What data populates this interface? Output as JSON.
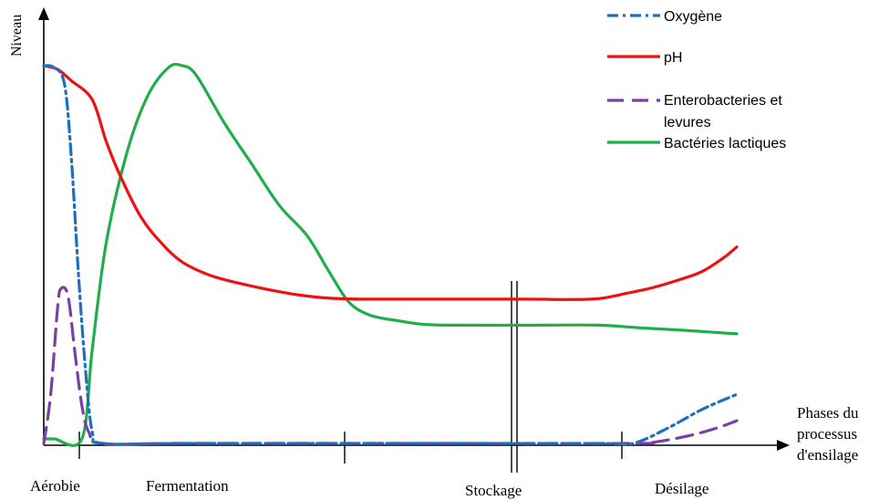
{
  "chart_data": {
    "type": "line",
    "ylabel": "Niveau",
    "xlabel_lines": [
      "Phases du",
      "processus",
      "d'ensilage"
    ],
    "phases": [
      "Aérobie",
      "Fermentation",
      "Stockage",
      "Désilage"
    ],
    "legend_position": "top-right",
    "series": [
      {
        "name": "Oxygène",
        "color": "#1f6fbf",
        "dash": "dashdot",
        "points": [
          [
            0,
            1.0
          ],
          [
            0.015,
            0.995
          ],
          [
            0.03,
            0.95
          ],
          [
            0.04,
            0.75
          ],
          [
            0.05,
            0.45
          ],
          [
            0.06,
            0.2
          ],
          [
            0.07,
            0.03
          ],
          [
            0.085,
            0.0
          ],
          [
            0.2,
            0.0
          ],
          [
            0.5,
            0.0
          ],
          [
            0.8,
            0.0
          ],
          [
            0.85,
            0.0
          ],
          [
            0.9,
            0.04
          ],
          [
            0.95,
            0.09
          ],
          [
            1.0,
            0.13
          ]
        ]
      },
      {
        "name": "pH",
        "color": "#ee1111",
        "dash": "solid",
        "points": [
          [
            0,
            1.0
          ],
          [
            0.02,
            0.99
          ],
          [
            0.04,
            0.96
          ],
          [
            0.07,
            0.91
          ],
          [
            0.09,
            0.8
          ],
          [
            0.11,
            0.71
          ],
          [
            0.14,
            0.6
          ],
          [
            0.17,
            0.53
          ],
          [
            0.2,
            0.48
          ],
          [
            0.24,
            0.445
          ],
          [
            0.28,
            0.425
          ],
          [
            0.33,
            0.405
          ],
          [
            0.38,
            0.39
          ],
          [
            0.43,
            0.383
          ],
          [
            0.5,
            0.382
          ],
          [
            0.6,
            0.382
          ],
          [
            0.7,
            0.382
          ],
          [
            0.75,
            0.381
          ],
          [
            0.8,
            0.383
          ],
          [
            0.84,
            0.397
          ],
          [
            0.88,
            0.413
          ],
          [
            0.92,
            0.435
          ],
          [
            0.95,
            0.455
          ],
          [
            0.98,
            0.49
          ],
          [
            1.0,
            0.52
          ]
        ]
      },
      {
        "name": "Enterobacteries et levures",
        "color": "#7a3fa3",
        "dash": "longdash",
        "points": [
          [
            0,
            0.0
          ],
          [
            0.01,
            0.13
          ],
          [
            0.02,
            0.36
          ],
          [
            0.025,
            0.41
          ],
          [
            0.035,
            0.39
          ],
          [
            0.045,
            0.24
          ],
          [
            0.055,
            0.1
          ],
          [
            0.065,
            0.03
          ],
          [
            0.085,
            0.0
          ],
          [
            0.2,
            0.0
          ],
          [
            0.5,
            0.0
          ],
          [
            0.85,
            0.0
          ],
          [
            0.88,
            0.003
          ],
          [
            0.93,
            0.02
          ],
          [
            0.97,
            0.04
          ],
          [
            1.0,
            0.06
          ]
        ]
      },
      {
        "name": "Bactéries lactiques",
        "color": "#1fae4b",
        "dash": "solid",
        "points": [
          [
            0,
            0.012
          ],
          [
            0.015,
            0.012
          ],
          [
            0.055,
            0.012
          ],
          [
            0.07,
            0.25
          ],
          [
            0.09,
            0.53
          ],
          [
            0.12,
            0.77
          ],
          [
            0.15,
            0.92
          ],
          [
            0.18,
            0.995
          ],
          [
            0.2,
            1.0
          ],
          [
            0.22,
            0.975
          ],
          [
            0.26,
            0.85
          ],
          [
            0.3,
            0.74
          ],
          [
            0.34,
            0.63
          ],
          [
            0.38,
            0.55
          ],
          [
            0.41,
            0.46
          ],
          [
            0.44,
            0.375
          ],
          [
            0.47,
            0.34
          ],
          [
            0.51,
            0.325
          ],
          [
            0.55,
            0.315
          ],
          [
            0.6,
            0.313
          ],
          [
            0.7,
            0.313
          ],
          [
            0.8,
            0.313
          ],
          [
            0.86,
            0.306
          ],
          [
            0.92,
            0.3
          ],
          [
            1.0,
            0.29
          ]
        ]
      }
    ]
  }
}
